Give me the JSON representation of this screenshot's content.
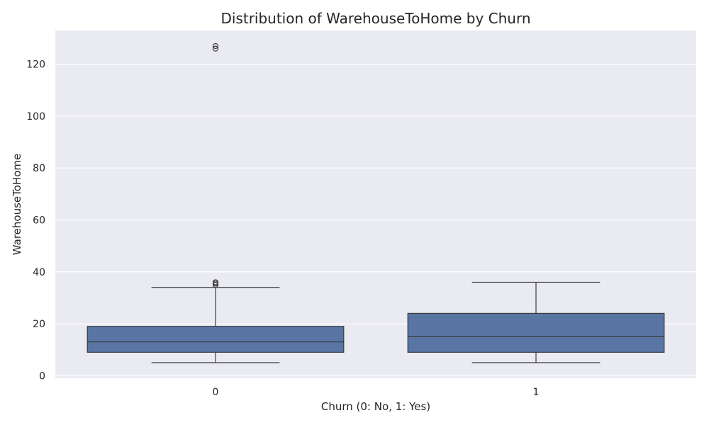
{
  "chart_data": {
    "type": "box",
    "title": "Distribution of WarehouseToHome by Churn",
    "xlabel": "Churn (0: No, 1: Yes)",
    "ylabel": "WarehouseToHome",
    "categories": [
      "0",
      "1"
    ],
    "ylim": [
      -1,
      133
    ],
    "yticks": [
      0,
      20,
      40,
      60,
      80,
      100,
      120
    ],
    "grid": true,
    "boxes": [
      {
        "category": "0",
        "whisker_low": 5,
        "q1": 9,
        "median": 13,
        "q3": 19,
        "whisker_high": 34,
        "outliers": [
          35,
          35.5,
          36,
          126,
          127
        ]
      },
      {
        "category": "1",
        "whisker_low": 5,
        "q1": 9,
        "median": 15,
        "q3": 24,
        "whisker_high": 36,
        "outliers": []
      }
    ]
  },
  "colors": {
    "plot_background": "#eaeaf2",
    "grid": "#ffffff",
    "box_fill": "#5875a4",
    "line": "#3c3c3c"
  }
}
